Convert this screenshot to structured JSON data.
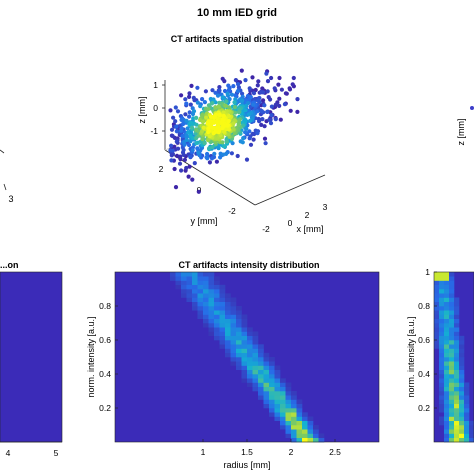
{
  "figure_title": "10 mm IED grid",
  "colors": {
    "background": "#3b2bb8",
    "low": "#3d26a8",
    "mid": "#21a7d9",
    "high": "#f2d02b"
  },
  "chart_data": [
    {
      "id": "left-heatmap-partial",
      "type": "heatmap",
      "title": "...on",
      "x_ticks": [
        "4",
        "5"
      ],
      "note": "mostly cropped; only right edge visible"
    },
    {
      "id": "left-3d-partial",
      "type": "scatter",
      "z_ticks": [
        "3"
      ],
      "note": "mostly cropped; only right edge visible"
    },
    {
      "id": "spatial-3d",
      "type": "scatter",
      "title": "CT artifacts spatial distribution",
      "xlabel": "x [mm]",
      "ylabel": "y [mm]",
      "zlabel": "z [mm]",
      "x_ticks": [
        "-2",
        "0",
        "2",
        "3"
      ],
      "y_ticks": [
        "2",
        "0",
        "-2"
      ],
      "z_ticks": [
        "1",
        "0",
        "-1"
      ],
      "x_ticks_shown": [
        "3",
        "2",
        "0",
        "-2"
      ],
      "y_ticks_shown": [
        "2",
        "0",
        "-2"
      ],
      "z_ticks_shown": [
        "1",
        "0",
        "-1"
      ],
      "cluster": {
        "shape": "ellipsoid cloud",
        "center": [
          0,
          0,
          -0.8
        ],
        "dense_core_color": "yellow",
        "outer_color": "dark blue"
      }
    },
    {
      "id": "intensity-heatmap",
      "type": "heatmap",
      "title": "CT artifacts intensity distribution",
      "xlabel": "radius [mm]",
      "ylabel": "norm. intensity [a.u.]",
      "xlim": [
        0,
        3
      ],
      "ylim": [
        0,
        1
      ],
      "x_ticks": [
        "1",
        "1.5",
        "2",
        "2.5"
      ],
      "y_ticks": [
        "0.2",
        "0.4",
        "0.6",
        "0.8"
      ],
      "band": "diagonal band from (radius 1.0, intensity 0.9) to (radius 2.2, intensity 0.05); peak density near radius 2, intensity 0.1"
    },
    {
      "id": "right-3d-partial",
      "type": "scatter",
      "zlabel": "z [mm]",
      "note": "mostly cropped; only left edge visible"
    },
    {
      "id": "right-heatmap-partial",
      "type": "heatmap",
      "ylabel": "norm. intensity [a.u.]",
      "y_ticks": [
        "0.2",
        "0.4",
        "0.6",
        "0.8",
        "1"
      ],
      "note": "mostly cropped; only left edge visible"
    }
  ]
}
